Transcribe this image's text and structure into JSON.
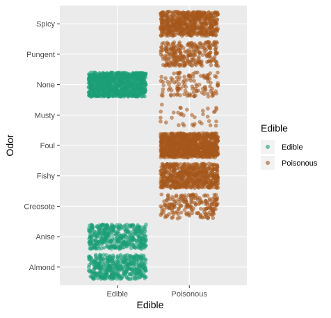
{
  "chart_data": {
    "type": "scatter",
    "jitter": true,
    "xlabel": "Edible",
    "ylabel": "Odor",
    "x_categories": [
      "Edible",
      "Poisonous"
    ],
    "y_categories": [
      "Almond",
      "Anise",
      "Creosote",
      "Fishy",
      "Foul",
      "Musty",
      "None",
      "Pungent",
      "Spicy"
    ],
    "legend": {
      "title": "Edible",
      "position": "right",
      "items": [
        {
          "label": "Edible",
          "color": "#1b9e77"
        },
        {
          "label": "Poisonous",
          "color": "#a6581c"
        }
      ]
    },
    "grid": true,
    "panel_background": "#ebebeb",
    "counts": [
      {
        "x": "Edible",
        "y": "Almond",
        "count": 400
      },
      {
        "x": "Edible",
        "y": "Anise",
        "count": 400
      },
      {
        "x": "Edible",
        "y": "None",
        "count": 3408
      },
      {
        "x": "Poisonous",
        "y": "Creosote",
        "count": 192
      },
      {
        "x": "Poisonous",
        "y": "Fishy",
        "count": 576
      },
      {
        "x": "Poisonous",
        "y": "Foul",
        "count": 2160
      },
      {
        "x": "Poisonous",
        "y": "Musty",
        "count": 36
      },
      {
        "x": "Poisonous",
        "y": "None",
        "count": 120
      },
      {
        "x": "Poisonous",
        "y": "Pungent",
        "count": 256
      },
      {
        "x": "Poisonous",
        "y": "Spicy",
        "count": 576
      }
    ]
  }
}
